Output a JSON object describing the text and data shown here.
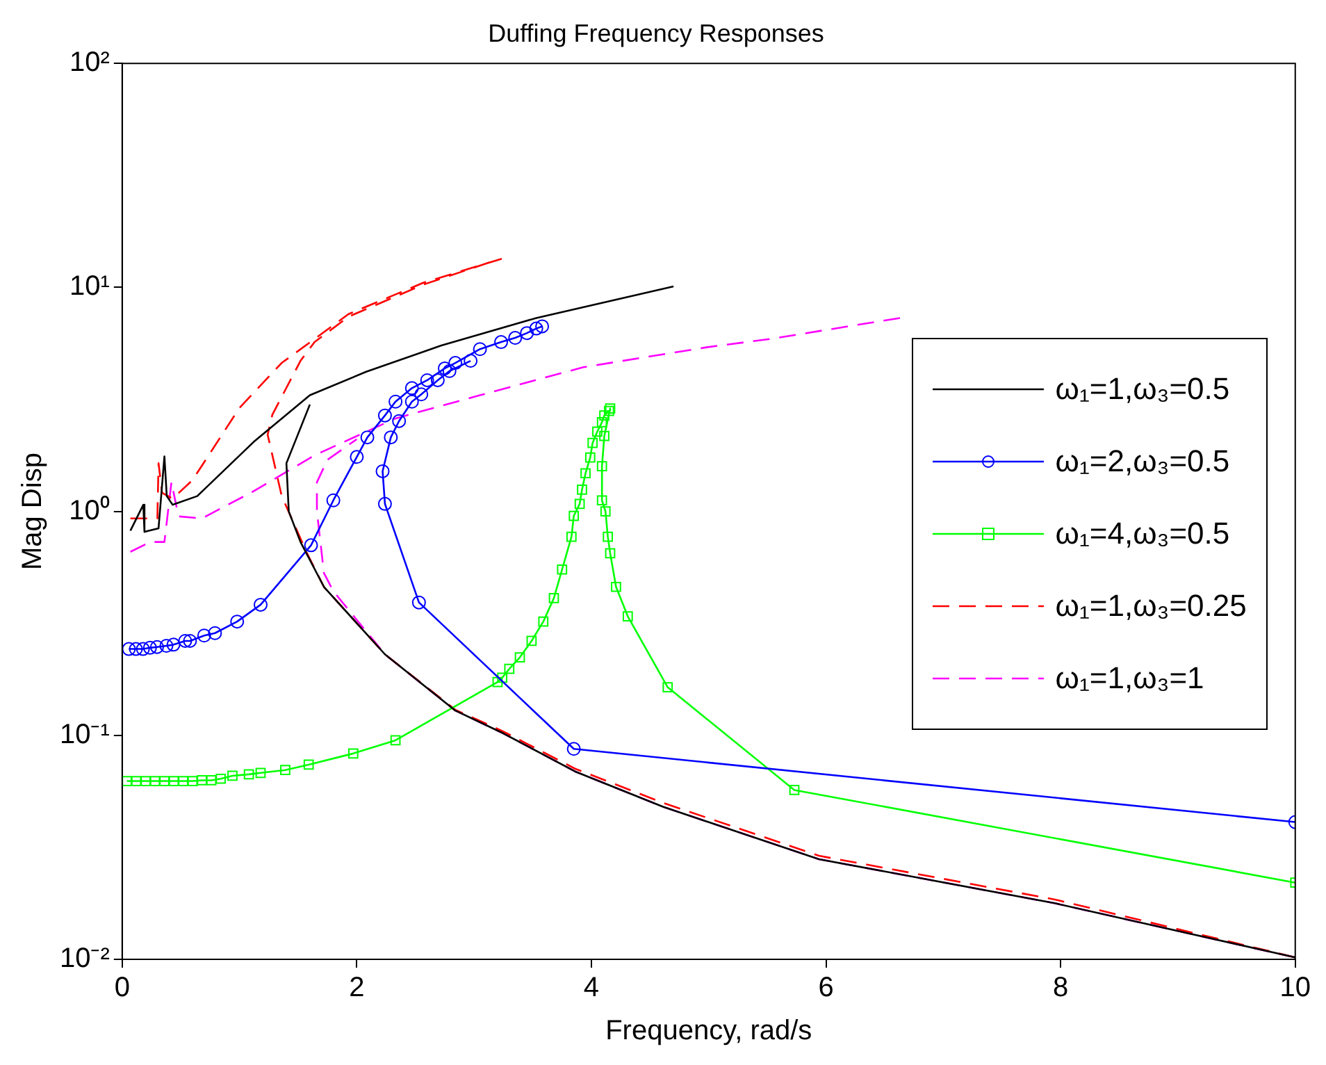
{
  "chart_data": {
    "type": "line",
    "title": "Duffing Frequency Responses",
    "xlabel": "Frequency, rad/s",
    "ylabel": "Mag Disp",
    "log": "y",
    "grid": false,
    "legend": "right",
    "xlim": [
      0,
      10
    ],
    "xticks": [
      0,
      2,
      4,
      6,
      8,
      10
    ],
    "ylim": [
      0.01,
      100
    ],
    "yticks": [
      {
        "value": 0.01,
        "label": "10⁻²"
      },
      {
        "value": 0.1,
        "label": "10⁻¹"
      },
      {
        "value": 1,
        "label": "10⁰"
      },
      {
        "value": 10,
        "label": "10¹"
      },
      {
        "value": 100,
        "label": "10²"
      }
    ],
    "series": [
      {
        "name": "ω₁=1,ω₃=0.5",
        "color": "#000000",
        "marker": "none",
        "line_style": "solid",
        "x": [
          0.07,
          0.18,
          0.19,
          0.31,
          0.36,
          0.38,
          0.43,
          0.64,
          1.12,
          1.6,
          2.08,
          2.72,
          3.53,
          4.7,
          null,
          10,
          7.95,
          5.94,
          4.61,
          3.86,
          3.25,
          2.84,
          2.24,
          1.72,
          1.52,
          1.42,
          1.4,
          1.6
        ],
        "values": [
          0.82,
          1.07,
          0.81,
          0.84,
          1.76,
          1.17,
          1.07,
          1.17,
          2.04,
          3.3,
          4.2,
          5.5,
          7.3,
          10.1,
          null,
          0.0102,
          0.0178,
          0.028,
          0.048,
          0.069,
          0.102,
          0.129,
          0.23,
          0.46,
          0.73,
          1.0,
          1.64,
          3.0
        ]
      },
      {
        "name": "ω₁=2,ω₃=0.5",
        "color": "#0000ff",
        "marker": "circle",
        "line_style": "solid",
        "x": [
          0.057,
          0.117,
          0.177,
          0.237,
          0.297,
          0.377,
          0.437,
          0.537,
          0.578,
          0.699,
          0.791,
          0.98,
          1.18,
          1.61,
          1.8,
          2.0,
          2.09,
          2.24,
          2.33,
          2.47,
          2.6,
          2.75,
          2.84,
          3.05,
          3.23,
          3.35,
          3.45,
          3.53,
          3.58,
          null,
          10,
          3.85,
          2.53,
          2.24,
          2.22,
          2.29,
          2.36,
          2.47,
          2.55,
          2.69,
          2.79,
          2.97
        ],
        "values": [
          0.243,
          0.243,
          0.243,
          0.246,
          0.248,
          0.251,
          0.254,
          0.264,
          0.264,
          0.279,
          0.286,
          0.322,
          0.383,
          0.706,
          1.12,
          1.75,
          2.14,
          2.68,
          3.09,
          3.55,
          3.85,
          4.35,
          4.6,
          5.3,
          5.7,
          5.95,
          6.25,
          6.55,
          6.7,
          null,
          0.041,
          0.087,
          0.392,
          1.08,
          1.51,
          2.14,
          2.53,
          3.09,
          3.33,
          3.85,
          4.23,
          4.7
        ]
      },
      {
        "name": "ω₁=4,ω₃=0.5",
        "color": "#00ff00",
        "marker": "square",
        "line_style": "solid",
        "x": [
          0.04,
          0.12,
          0.2,
          0.28,
          0.36,
          0.44,
          0.52,
          0.6,
          0.68,
          0.76,
          0.84,
          0.94,
          1.08,
          1.18,
          1.39,
          1.59,
          1.97,
          2.33,
          3.2,
          3.24,
          3.3,
          3.39,
          3.49,
          3.59,
          3.68,
          3.75,
          3.83,
          3.85,
          3.9,
          3.92,
          3.95,
          3.99,
          4.01,
          4.05,
          4.09,
          4.11,
          4.15,
          4.16,
          4.11,
          4.09,
          4.09,
          4.12,
          4.14,
          4.16,
          4.21,
          4.31,
          4.65,
          5.73,
          10
        ],
        "values": [
          0.0625,
          0.0625,
          0.0625,
          0.0625,
          0.0625,
          0.0625,
          0.0625,
          0.0625,
          0.063,
          0.063,
          0.064,
          0.066,
          0.067,
          0.068,
          0.07,
          0.074,
          0.083,
          0.095,
          0.173,
          0.181,
          0.198,
          0.223,
          0.264,
          0.322,
          0.41,
          0.55,
          0.77,
          0.955,
          1.08,
          1.25,
          1.48,
          1.74,
          2.02,
          2.27,
          2.5,
          2.68,
          2.81,
          2.88,
          2.17,
          1.59,
          1.12,
          1.0,
          0.77,
          0.65,
          0.46,
          0.34,
          0.164,
          0.057,
          0.022
        ]
      },
      {
        "name": "ω₁=1,ω₃=0.25",
        "color": "#ff0000",
        "marker": "none",
        "line_style": "dashed",
        "x": [
          0.07,
          0.3,
          0.31,
          0.34,
          0.43,
          0.6,
          1.0,
          1.36,
          1.93,
          2.57,
          3.27,
          null,
          10,
          7.95,
          5.94,
          4.61,
          3.86,
          3.25,
          2.84,
          2.24,
          1.72,
          1.57,
          1.36,
          1.24,
          1.28,
          1.52,
          1.64,
          1.93,
          2.57,
          3.2
        ],
        "values": [
          0.93,
          0.93,
          1.64,
          1.21,
          1.14,
          1.38,
          2.9,
          4.6,
          7.6,
          10.5,
          13.6,
          null,
          0.0102,
          0.0185,
          0.029,
          0.05,
          0.071,
          0.104,
          0.13,
          0.23,
          0.46,
          0.66,
          1.17,
          2.2,
          2.7,
          4.7,
          5.7,
          7.4,
          10.3,
          13.3
        ]
      },
      {
        "name": "ω₁=1,ω₃=1",
        "color": "#ff00ff",
        "marker": "none",
        "line_style": "dashed",
        "x": [
          0.07,
          0.24,
          0.36,
          0.42,
          0.48,
          0.68,
          1.12,
          1.64,
          2.33,
          3.05,
          3.93,
          4.98,
          5.54,
          6.63,
          null,
          10,
          7.95,
          5.94,
          4.61,
          3.86,
          3.25,
          2.84,
          2.24,
          1.8,
          1.72,
          1.66,
          1.66,
          1.75,
          2.0
        ],
        "values": [
          0.66,
          0.73,
          0.73,
          1.35,
          0.95,
          0.93,
          1.23,
          1.78,
          2.6,
          3.3,
          4.4,
          5.4,
          5.9,
          7.3,
          null,
          0.0102,
          0.0178,
          0.028,
          0.048,
          0.069,
          0.102,
          0.129,
          0.23,
          0.44,
          0.53,
          1.0,
          1.35,
          1.7,
          2.1
        ]
      }
    ]
  }
}
